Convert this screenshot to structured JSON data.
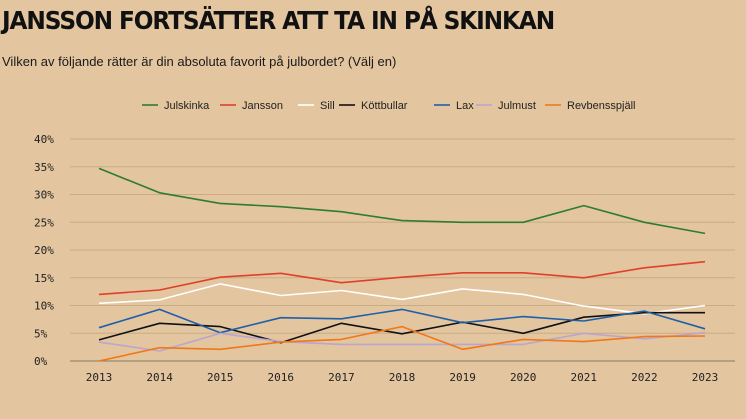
{
  "title": "JANSSON FORTSÄTTER ATT TA IN PÅ SKINKAN",
  "subtitle": "Vilken av följande rätter är din absoluta favorit på julbordet? (Välj en)",
  "chart_data": {
    "type": "line",
    "x": [
      "2013",
      "2014",
      "2015",
      "2016",
      "2017",
      "2018",
      "2019",
      "2020",
      "2021",
      "2022",
      "2023"
    ],
    "ylim": [
      0,
      40
    ],
    "yticks": [
      0,
      5,
      10,
      15,
      20,
      25,
      30,
      35,
      40
    ],
    "ytick_suffix": "%",
    "grid": true,
    "legend_position": "top",
    "series": [
      {
        "name": "Julskinka",
        "color": "#2e7d2e",
        "values": [
          34.7,
          30.3,
          28.4,
          27.8,
          26.9,
          25.3,
          25.0,
          25.0,
          28.0,
          25.0,
          23.0
        ]
      },
      {
        "name": "Jansson",
        "color": "#e0402a",
        "values": [
          12.0,
          12.8,
          15.1,
          15.8,
          14.1,
          15.1,
          15.9,
          15.9,
          15.0,
          16.8,
          17.9
        ]
      },
      {
        "name": "Sill",
        "color": "#ffffff",
        "values": [
          10.4,
          11.0,
          13.9,
          11.8,
          12.7,
          11.1,
          13.0,
          12.0,
          9.9,
          8.5,
          10.0
        ]
      },
      {
        "name": "Köttbullar",
        "color": "#111111",
        "values": [
          3.8,
          6.8,
          6.2,
          3.3,
          6.8,
          4.9,
          7.0,
          5.0,
          7.9,
          8.7,
          8.7
        ]
      },
      {
        "name": "Lax",
        "color": "#1f5fa8",
        "values": [
          6.0,
          9.3,
          5.1,
          7.8,
          7.6,
          9.3,
          6.9,
          8.0,
          7.2,
          9.0,
          5.8
        ]
      },
      {
        "name": "Julmust",
        "color": "#b9a6cf",
        "values": [
          3.4,
          1.8,
          5.0,
          3.5,
          3.0,
          3.0,
          3.0,
          3.0,
          5.0,
          4.0,
          5.1
        ]
      },
      {
        "name": "Revbensspjäll",
        "color": "#f07818",
        "values": [
          0.0,
          2.4,
          2.1,
          3.4,
          3.9,
          6.2,
          2.1,
          3.9,
          3.5,
          4.4,
          4.5
        ]
      }
    ]
  }
}
